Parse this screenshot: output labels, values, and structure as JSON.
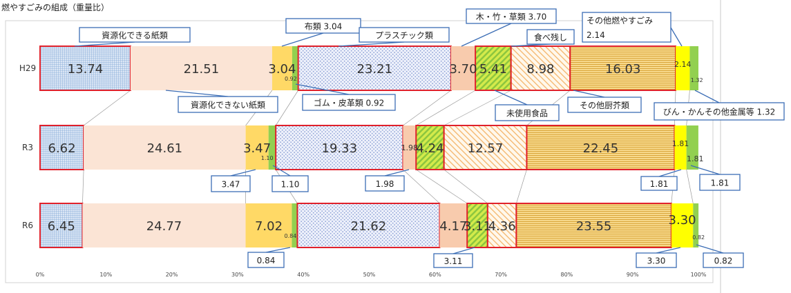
{
  "chart_data": {
    "type": "bar",
    "orientation": "horizontal",
    "stacked": true,
    "title": "燃やすごみの組成（重量比）",
    "categories": [
      "H29",
      "R3",
      "R6"
    ],
    "xlim": [
      0,
      100
    ],
    "x_ticks": [
      "0%",
      "10%",
      "20%",
      "30%",
      "40%",
      "50%",
      "60%",
      "70%",
      "80%",
      "90%",
      "100%"
    ],
    "series": [
      {
        "name": "資源化できる紙類",
        "values": [
          13.74,
          6.62,
          6.45
        ],
        "labels": [
          "13.74",
          "6.62",
          "6.45"
        ],
        "color": "#dbe6f5",
        "pattern": "grid",
        "outlined": true
      },
      {
        "name": "資源化できない紙類",
        "values": [
          21.51,
          24.61,
          24.77
        ],
        "labels": [
          "21.51",
          "24.61",
          "24.77"
        ],
        "color": "#fbe4d5",
        "pattern": "none",
        "outlined": false
      },
      {
        "name": "布類",
        "values": [
          3.04,
          3.47,
          7.02
        ],
        "labels": [
          "3.04",
          "3.47",
          "7.02"
        ],
        "color": "#ffd966",
        "pattern": "none",
        "outlined": false
      },
      {
        "name": "ゴム・皮革類",
        "values": [
          0.92,
          1.1,
          0.84
        ],
        "labels": [
          "0.92",
          "1.10",
          "0.84"
        ],
        "color": "#92d050",
        "pattern": "none",
        "outlined": false
      },
      {
        "name": "プラスチック類",
        "values": [
          23.21,
          19.33,
          21.62
        ],
        "labels": [
          "23.21",
          "19.33",
          "21.62"
        ],
        "color": "#eef1fb",
        "pattern": "dots",
        "outlined": true
      },
      {
        "name": "木・竹・草類",
        "values": [
          3.7,
          1.98,
          4.17
        ],
        "labels": [
          "3.70",
          "1.98",
          "4.17"
        ],
        "color": "#f8cbad",
        "pattern": "none",
        "outlined": false
      },
      {
        "name": "未使用食品",
        "values": [
          5.41,
          4.24,
          3.11
        ],
        "labels": [
          "5.41",
          "4.24",
          "3.11"
        ],
        "color": "#d4ea4b",
        "pattern": "diag-green",
        "outlined": true
      },
      {
        "name": "食べ残し",
        "values": [
          8.98,
          12.57,
          4.36
        ],
        "labels": [
          "8.98",
          "12.57",
          "4.36"
        ],
        "color": "#fff4e0",
        "pattern": "diag-orange",
        "outlined": true
      },
      {
        "name": "その他厨芥類",
        "values": [
          16.03,
          22.45,
          23.55
        ],
        "labels": [
          "16.03",
          "22.45",
          "23.55"
        ],
        "color": "#f6d27a",
        "pattern": "hlines",
        "outlined": true
      },
      {
        "name": "その他燃やすごみ",
        "values": [
          2.14,
          1.81,
          3.3
        ],
        "labels": [
          "2.14",
          "1.81",
          "3.30"
        ],
        "color": "#ffff00",
        "pattern": "none",
        "outlined": false
      },
      {
        "name": "びん・かんその他金属等",
        "values": [
          1.32,
          1.81,
          0.82
        ],
        "labels": [
          "1.32",
          "1.81",
          "0.82"
        ],
        "color": "#92d050",
        "pattern": "none",
        "outlined": false
      }
    ],
    "callouts": [
      {
        "text": "資源化できる紙類"
      },
      {
        "text": "資源化できない紙類"
      },
      {
        "text": "布類 3.04"
      },
      {
        "text": "ゴム・皮革類 0.92"
      },
      {
        "text": "プラスチック類"
      },
      {
        "text": "木・竹・草類 3.70"
      },
      {
        "text": "食べ残し"
      },
      {
        "text": "未使用食品"
      },
      {
        "text": "その他厨芥類"
      },
      {
        "text": "その他燃やすごみ"
      },
      {
        "text": "2.14"
      },
      {
        "text": "びん・かんその他金属等 1.32"
      },
      {
        "text": "3.47"
      },
      {
        "text": "1.10"
      },
      {
        "text": "1.98"
      },
      {
        "text": "1.81"
      },
      {
        "text": "1.81"
      },
      {
        "text": "0.84"
      },
      {
        "text": "3.11"
      },
      {
        "text": "3.30"
      },
      {
        "text": "0.82"
      }
    ]
  }
}
